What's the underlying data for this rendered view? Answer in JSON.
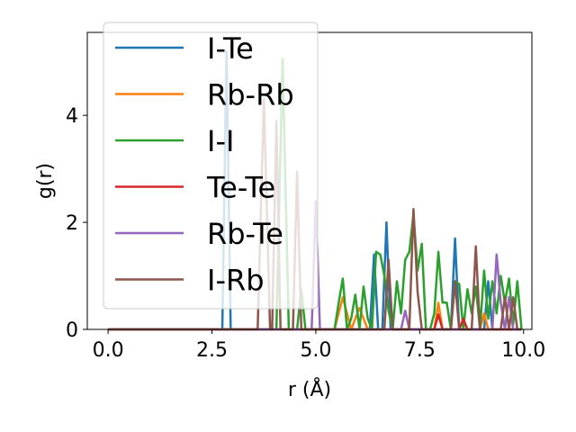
{
  "chart_data": {
    "type": "line",
    "title": "",
    "xlabel": "r (Å)",
    "ylabel": "g(r)",
    "xlim": [
      -0.5,
      10.2
    ],
    "ylim": [
      0,
      5.55
    ],
    "xticks": [
      0.0,
      2.5,
      5.0,
      7.5,
      10.0
    ],
    "xtick_labels": [
      "0.0",
      "2.5",
      "5.0",
      "7.5",
      "10.0"
    ],
    "yticks": [
      0,
      2,
      4
    ],
    "ytick_labels": [
      "0",
      "2",
      "4"
    ],
    "grid": false,
    "legend_position": "top-left",
    "series": [
      {
        "name": "I-Te",
        "color": "#1f77b4",
        "points": [
          [
            0.0,
            0
          ],
          [
            2.75,
            0
          ],
          [
            2.85,
            5.2
          ],
          [
            2.95,
            0
          ],
          [
            3.05,
            0
          ],
          [
            6.3,
            0
          ],
          [
            6.4,
            1.4
          ],
          [
            6.5,
            0
          ],
          [
            6.6,
            0
          ],
          [
            6.7,
            2.0
          ],
          [
            6.8,
            0
          ],
          [
            8.25,
            0
          ],
          [
            8.35,
            1.7
          ],
          [
            8.45,
            0
          ],
          [
            9.05,
            0
          ],
          [
            9.15,
            0.9
          ],
          [
            9.25,
            0
          ],
          [
            9.95,
            0
          ]
        ]
      },
      {
        "name": "Rb-Rb",
        "color": "#ff7f0e",
        "points": [
          [
            0.0,
            0
          ],
          [
            5.45,
            0
          ],
          [
            5.65,
            0.6
          ],
          [
            5.85,
            0
          ],
          [
            6.05,
            0.4
          ],
          [
            6.25,
            0
          ],
          [
            7.85,
            0
          ],
          [
            7.95,
            0.5
          ],
          [
            8.05,
            0
          ],
          [
            8.95,
            0
          ],
          [
            9.05,
            0.3
          ],
          [
            9.15,
            0
          ],
          [
            9.95,
            0
          ]
        ]
      },
      {
        "name": "I-I",
        "color": "#2ca02c",
        "points": [
          [
            0.0,
            0
          ],
          [
            4.05,
            0
          ],
          [
            4.2,
            5.05
          ],
          [
            4.35,
            0
          ],
          [
            4.55,
            0
          ],
          [
            4.65,
            0.75
          ],
          [
            4.75,
            0
          ],
          [
            5.45,
            0
          ],
          [
            5.55,
            0.5
          ],
          [
            5.65,
            0.95
          ],
          [
            5.75,
            0
          ],
          [
            5.85,
            0.2
          ],
          [
            5.95,
            0.65
          ],
          [
            6.05,
            0
          ],
          [
            6.15,
            0.8
          ],
          [
            6.25,
            0.2
          ],
          [
            6.35,
            0
          ],
          [
            6.45,
            1.45
          ],
          [
            6.55,
            1.4
          ],
          [
            6.65,
            1.0
          ],
          [
            6.75,
            0.35
          ],
          [
            6.85,
            0
          ],
          [
            6.95,
            0.9
          ],
          [
            7.05,
            0.3
          ],
          [
            7.15,
            1.3
          ],
          [
            7.25,
            1.45
          ],
          [
            7.35,
            2.15
          ],
          [
            7.45,
            1.1
          ],
          [
            7.55,
            1.6
          ],
          [
            7.65,
            0
          ],
          [
            7.75,
            0
          ],
          [
            7.85,
            0.3
          ],
          [
            7.95,
            1.45
          ],
          [
            8.05,
            0.5
          ],
          [
            8.15,
            0.5
          ],
          [
            8.25,
            0
          ],
          [
            8.35,
            0.9
          ],
          [
            8.45,
            0.85
          ],
          [
            8.55,
            0
          ],
          [
            8.65,
            0.75
          ],
          [
            8.75,
            0.3
          ],
          [
            8.85,
            0.8
          ],
          [
            8.95,
            0
          ],
          [
            9.05,
            1.1
          ],
          [
            9.15,
            0.2
          ],
          [
            9.25,
            0.9
          ],
          [
            9.35,
            0.3
          ],
          [
            9.45,
            1.0
          ],
          [
            9.55,
            0.5
          ],
          [
            9.65,
            0.95
          ],
          [
            9.75,
            0.1
          ],
          [
            9.85,
            0.9
          ],
          [
            9.95,
            0
          ]
        ]
      },
      {
        "name": "Te-Te",
        "color": "#d62728",
        "points": [
          [
            0.0,
            0
          ],
          [
            7.85,
            0
          ],
          [
            7.95,
            0.28
          ],
          [
            8.05,
            0
          ],
          [
            8.45,
            0
          ],
          [
            8.55,
            0.2
          ],
          [
            8.65,
            0
          ],
          [
            9.95,
            0
          ]
        ]
      },
      {
        "name": "Rb-Te",
        "color": "#9467bd",
        "points": [
          [
            0.0,
            0
          ],
          [
            4.9,
            0
          ],
          [
            5.0,
            2.4
          ],
          [
            5.1,
            0
          ],
          [
            7.05,
            0
          ],
          [
            7.15,
            0.35
          ],
          [
            7.25,
            0
          ],
          [
            9.25,
            0
          ],
          [
            9.35,
            1.4
          ],
          [
            9.45,
            0.5
          ],
          [
            9.55,
            0
          ],
          [
            9.65,
            0.6
          ],
          [
            9.75,
            0
          ],
          [
            9.95,
            0
          ]
        ]
      },
      {
        "name": "I-Rb",
        "color": "#8c564b",
        "points": [
          [
            0.0,
            0
          ],
          [
            3.6,
            0
          ],
          [
            3.75,
            4.3
          ],
          [
            3.9,
            0
          ],
          [
            3.95,
            0
          ],
          [
            4.05,
            3.9
          ],
          [
            4.15,
            0
          ],
          [
            4.45,
            0
          ],
          [
            4.55,
            2.95
          ],
          [
            4.65,
            0
          ],
          [
            6.65,
            0
          ],
          [
            6.75,
            1.3
          ],
          [
            6.85,
            0
          ],
          [
            7.25,
            0
          ],
          [
            7.35,
            2.25
          ],
          [
            7.45,
            0.7
          ],
          [
            7.55,
            0
          ],
          [
            8.25,
            0
          ],
          [
            8.35,
            0.9
          ],
          [
            8.45,
            0
          ],
          [
            8.75,
            0
          ],
          [
            8.85,
            1.55
          ],
          [
            8.95,
            0
          ],
          [
            9.45,
            0
          ],
          [
            9.55,
            0.6
          ],
          [
            9.65,
            0
          ],
          [
            9.75,
            0.6
          ],
          [
            9.85,
            0
          ],
          [
            9.95,
            0
          ]
        ]
      }
    ]
  }
}
